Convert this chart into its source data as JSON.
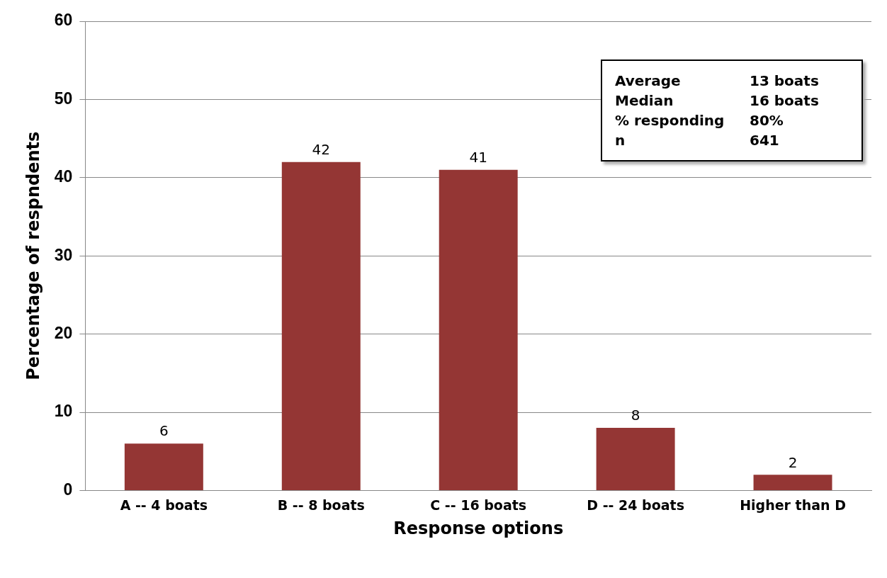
{
  "chart_data": {
    "type": "bar",
    "xlabel": "Response options",
    "ylabel": "Percentage of respndents",
    "categories": [
      "A -- 4 boats",
      "B -- 8 boats",
      "C -- 16 boats",
      "D -- 24 boats",
      "Higher than D"
    ],
    "values": [
      6,
      42,
      41,
      8,
      2
    ],
    "color": "#943634",
    "ylim": [
      0,
      60
    ],
    "yticks": [
      0,
      10,
      20,
      30,
      40,
      50,
      60
    ],
    "grid": "y",
    "data_labels": true,
    "annotations": [
      "Average",
      "13 boats",
      "Median",
      "16 boats",
      "% responding",
      "80%",
      "n",
      "641"
    ]
  }
}
